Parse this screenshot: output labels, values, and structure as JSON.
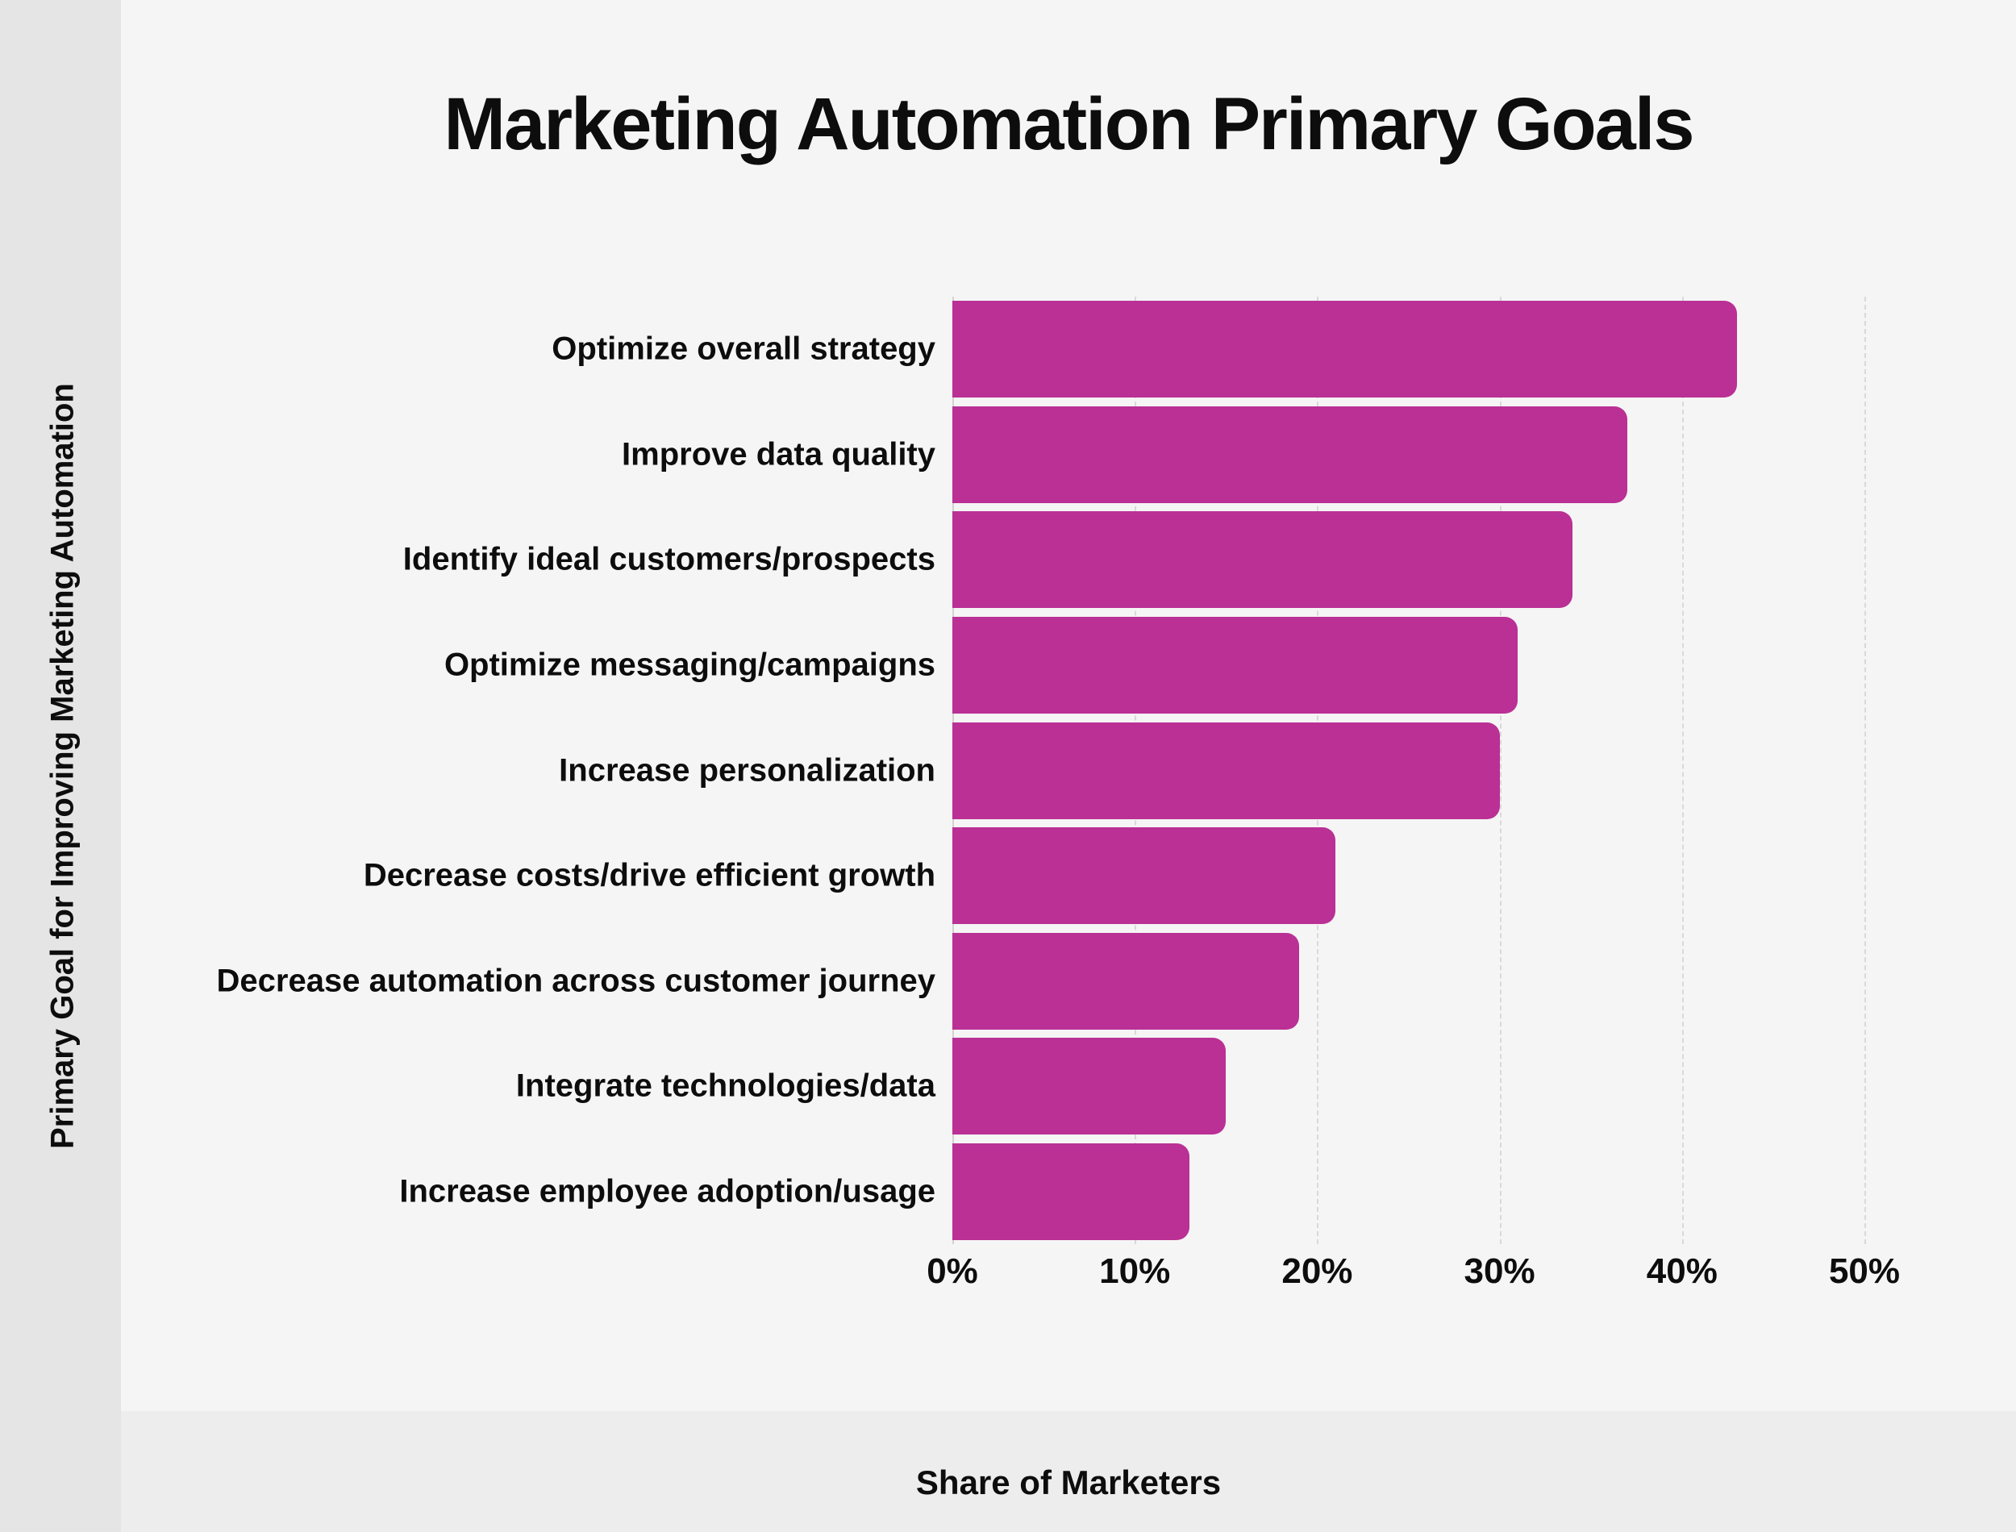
{
  "title": "Marketing Automation Primary Goals",
  "y_axis_title": "Primary Goal for Improving Marketing Automation",
  "x_axis_title": "Share of Marketers",
  "colors": {
    "bar": "#BA3095",
    "main_background": "#f5f5f5",
    "left_band_background": "#e5e5e5",
    "bottom_band_background": "#ededed",
    "gridline": "#d9d9d9",
    "text": "#0d0d0d"
  },
  "chart_data": {
    "type": "bar",
    "orientation": "horizontal",
    "title": "Marketing Automation Primary Goals",
    "xlabel": "Share of Marketers",
    "ylabel": "Primary Goal for Improving Marketing Automation",
    "categories": [
      "Optimize overall strategy",
      "Improve data quality",
      "Identify ideal customers/prospects",
      "Optimize messaging/campaigns",
      "Increase personalization",
      "Decrease costs/drive efficient growth",
      "Decrease automation across customer journey",
      "Integrate technologies/data",
      "Increase employee adoption/usage"
    ],
    "values": [
      43,
      37,
      34,
      31,
      30,
      21,
      19,
      15,
      13
    ],
    "unit": "%",
    "xlim": [
      0,
      50
    ],
    "x_tick_values": [
      0,
      10,
      20,
      30,
      40,
      50
    ],
    "x_tick_labels": [
      "0%",
      "10%",
      "20%",
      "30%",
      "40%",
      "50%"
    ],
    "grid": true,
    "legend": "none"
  }
}
